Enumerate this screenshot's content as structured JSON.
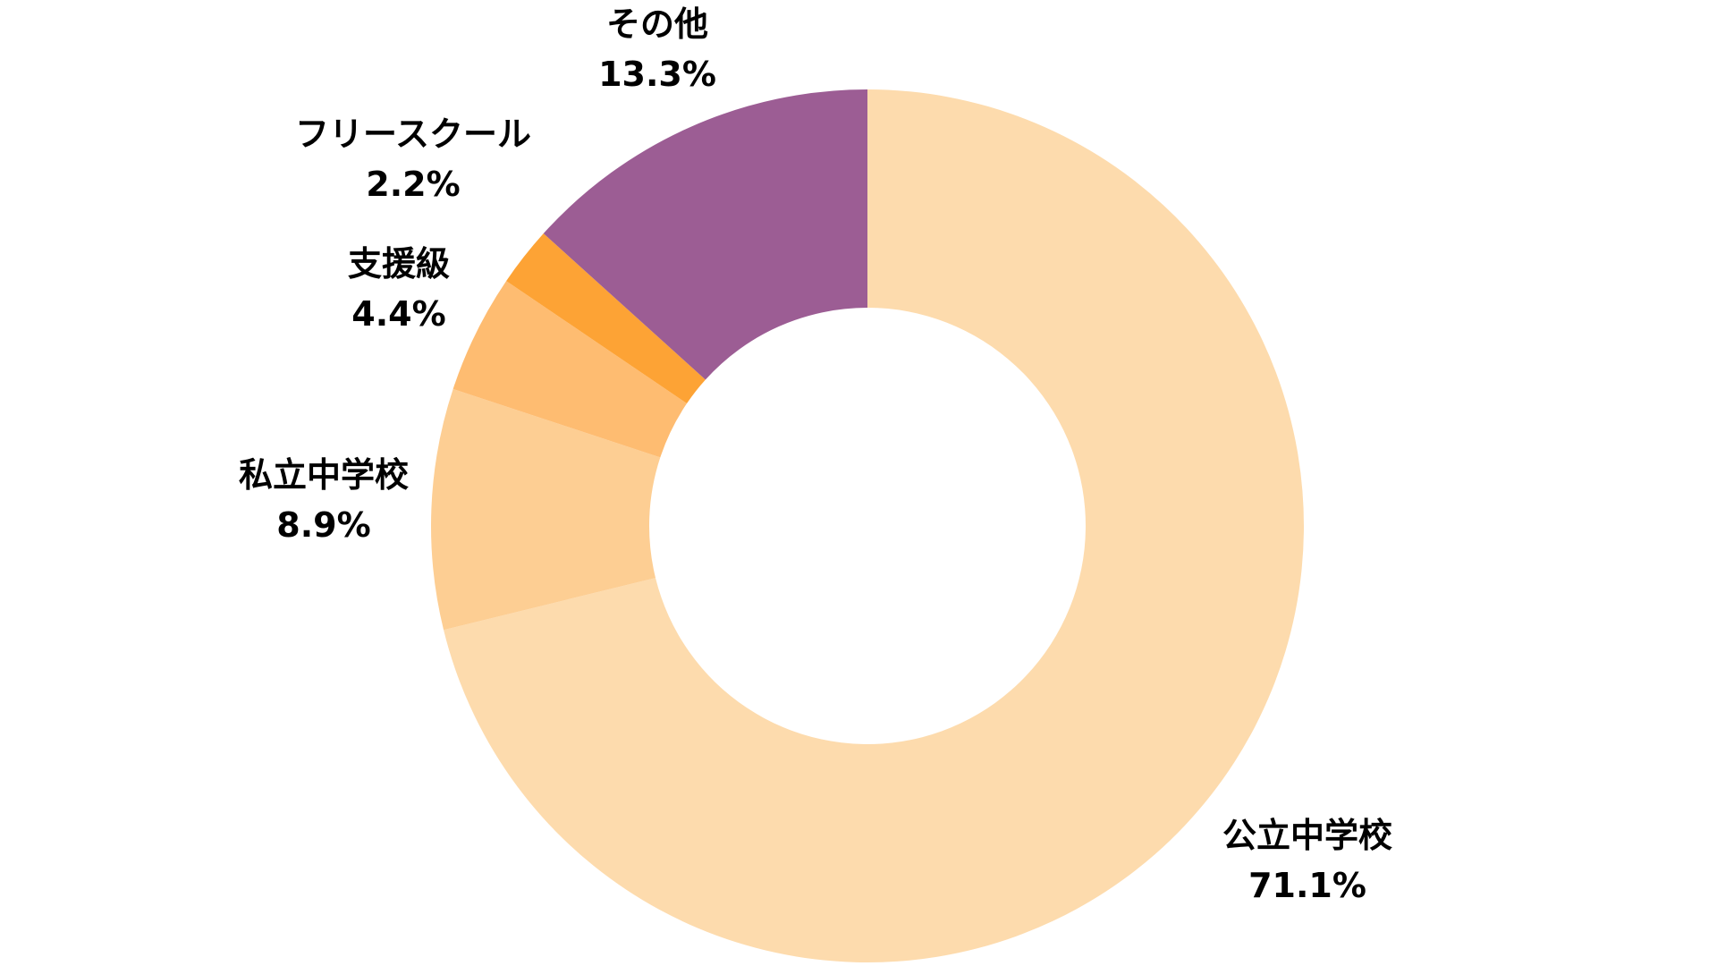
{
  "chart_data": {
    "type": "pie",
    "donut": true,
    "start_angle_deg": 0,
    "direction": "clockwise",
    "slices": [
      {
        "label": "公立中学校",
        "value": 71.1,
        "value_label": "71.1%",
        "color": "#FDDBAD"
      },
      {
        "label": "私立中学校",
        "value": 8.9,
        "value_label": "8.9%",
        "color": "#FDCE93"
      },
      {
        "label": "支援級",
        "value": 4.4,
        "value_label": "4.4%",
        "color": "#FEBC71"
      },
      {
        "label": "フリースクール",
        "value": 2.2,
        "value_label": "2.2%",
        "color": "#FDA335"
      },
      {
        "label": "その他",
        "value": 13.3,
        "value_label": "13.3%",
        "color": "#9C5D94"
      }
    ]
  }
}
